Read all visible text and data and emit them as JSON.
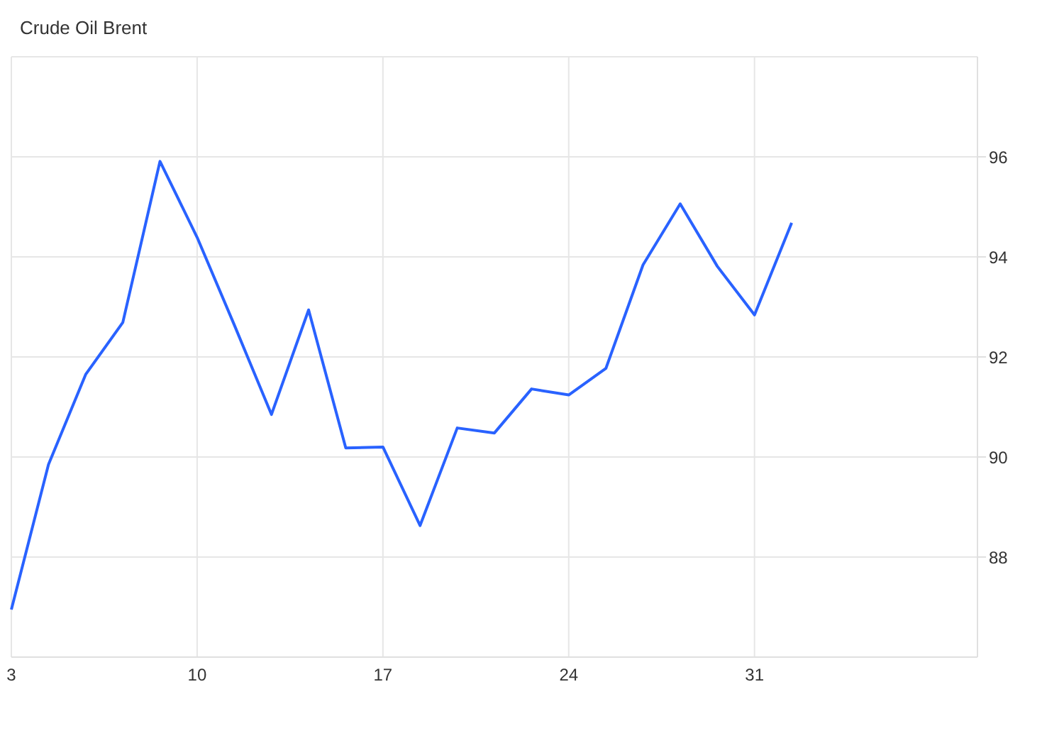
{
  "chart_data": {
    "type": "line",
    "title": "Crude Oil Brent",
    "categories": [
      "3",
      null,
      null,
      null,
      null,
      "10",
      null,
      null,
      null,
      null,
      "17",
      null,
      null,
      null,
      null,
      "24",
      null,
      null,
      null,
      null,
      "31",
      null,
      null,
      null,
      null,
      null,
      null
    ],
    "series": [
      {
        "color": "#2962ff",
        "values": [
          86.95,
          89.85,
          91.65,
          92.69,
          95.91,
          94.39,
          92.64,
          90.85,
          92.94,
          90.18,
          90.2,
          88.63,
          90.58,
          90.48,
          91.36,
          91.24,
          91.77,
          93.84,
          95.06,
          93.81,
          92.84,
          94.68,
          null,
          null,
          null,
          null,
          null
        ]
      }
    ],
    "ylim": [
      86,
      98
    ],
    "yticks": [
      88,
      90,
      92,
      94,
      96
    ],
    "grid": true,
    "marker": "none",
    "line_style": "solid"
  }
}
